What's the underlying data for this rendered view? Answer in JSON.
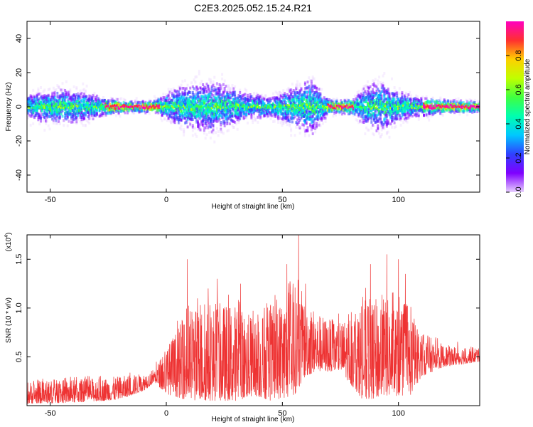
{
  "page_title": "C2E3.2025.052.15.24.R21",
  "colors": {
    "snr_line": "#ee3333",
    "colormap": [
      "#e8d0ff",
      "#8000ff",
      "#3040ff",
      "#00c8ff",
      "#00ffb0",
      "#40ff40",
      "#c0ff00",
      "#ffd000",
      "#ff3030",
      "#ff00c0"
    ]
  },
  "chart_data": [
    {
      "type": "heatmap",
      "title": "C2E3.2025.052.15.24.R21",
      "xlabel": "Height of straight line (km)",
      "ylabel": "Frequency (Hz)",
      "xlim": [
        -60,
        135
      ],
      "ylim": [
        -50,
        50
      ],
      "x_ticks": [
        -50,
        0,
        50,
        100
      ],
      "y_ticks": [
        -40,
        -20,
        0,
        20,
        40
      ],
      "x_tick_labels": [
        "-50",
        "0",
        "50",
        "100"
      ],
      "y_tick_labels": [
        "-40",
        "-20",
        "0",
        "20",
        "40"
      ],
      "colorbar": {
        "label": "Normalized spectral amplitude",
        "range": [
          0,
          1
        ],
        "ticks": [
          0,
          0.2,
          0.4,
          0.6,
          0.8
        ],
        "tick_labels": [
          "0.0",
          "0.2",
          "0.4",
          "0.6",
          "0.8"
        ]
      },
      "spread_profile": [
        {
          "x": -60,
          "spread": 10
        },
        {
          "x": -45,
          "spread": 14
        },
        {
          "x": -35,
          "spread": 11
        },
        {
          "x": -25,
          "spread": 6
        },
        {
          "x": -15,
          "spread": 4
        },
        {
          "x": -5,
          "spread": 5
        },
        {
          "x": 5,
          "spread": 16
        },
        {
          "x": 20,
          "spread": 20
        },
        {
          "x": 35,
          "spread": 10
        },
        {
          "x": 45,
          "spread": 8
        },
        {
          "x": 55,
          "spread": 16
        },
        {
          "x": 62,
          "spread": 22
        },
        {
          "x": 70,
          "spread": 5
        },
        {
          "x": 80,
          "spread": 6
        },
        {
          "x": 85,
          "spread": 15
        },
        {
          "x": 92,
          "spread": 20
        },
        {
          "x": 100,
          "spread": 12
        },
        {
          "x": 110,
          "spread": 7
        },
        {
          "x": 120,
          "spread": 5
        },
        {
          "x": 135,
          "spread": 4
        }
      ]
    },
    {
      "type": "line",
      "xlabel": "Height of straight line (km)",
      "ylabel": "SNR (10 * v/v)",
      "y_multiplier": "(x10^4)",
      "y_multiplier_base": "(x10",
      "y_multiplier_exp": "4",
      "y_multiplier_close": ")",
      "xlim": [
        -60,
        135
      ],
      "ylim": [
        0,
        1.75
      ],
      "x_ticks": [
        -50,
        0,
        50,
        100
      ],
      "y_ticks": [
        0.5,
        1.0,
        1.5
      ],
      "x_tick_labels": [
        "-50",
        "0",
        "50",
        "100"
      ],
      "y_tick_labels": [
        "0.5",
        "1.0",
        "1.5"
      ],
      "series": [
        {
          "envelope": [
            {
              "x": -60,
              "low": 0.02,
              "high": 0.25
            },
            {
              "x": -40,
              "low": 0.03,
              "high": 0.27
            },
            {
              "x": -20,
              "low": 0.06,
              "high": 0.3
            },
            {
              "x": -10,
              "low": 0.15,
              "high": 0.33
            },
            {
              "x": -5,
              "low": 0.24,
              "high": 0.38
            },
            {
              "x": 0,
              "low": 0.12,
              "high": 0.6
            },
            {
              "x": 10,
              "low": 0.05,
              "high": 1.0
            },
            {
              "x": 20,
              "low": 0.05,
              "high": 1.05
            },
            {
              "x": 30,
              "low": 0.05,
              "high": 1.05
            },
            {
              "x": 38,
              "low": 0.1,
              "high": 0.9
            },
            {
              "x": 45,
              "low": 0.05,
              "high": 1.0
            },
            {
              "x": 55,
              "low": 0.1,
              "high": 1.25
            },
            {
              "x": 60,
              "low": 0.3,
              "high": 1.15
            },
            {
              "x": 65,
              "low": 0.35,
              "high": 0.95
            },
            {
              "x": 75,
              "low": 0.35,
              "high": 0.85
            },
            {
              "x": 85,
              "low": 0.05,
              "high": 1.1
            },
            {
              "x": 95,
              "low": 0.1,
              "high": 1.1
            },
            {
              "x": 105,
              "low": 0.1,
              "high": 0.95
            },
            {
              "x": 110,
              "low": 0.3,
              "high": 0.75
            },
            {
              "x": 120,
              "low": 0.4,
              "high": 0.62
            },
            {
              "x": 135,
              "low": 0.45,
              "high": 0.6
            }
          ],
          "spikes": [
            {
              "x": 9,
              "value": 1.5
            },
            {
              "x": 18,
              "value": 1.2
            },
            {
              "x": 22,
              "value": 1.3
            },
            {
              "x": 32,
              "value": 1.25
            },
            {
              "x": 52,
              "value": 1.45
            },
            {
              "x": 57,
              "value": 1.75
            },
            {
              "x": 60,
              "value": 1.25
            },
            {
              "x": 88,
              "value": 1.45
            },
            {
              "x": 95,
              "value": 1.55
            },
            {
              "x": 100,
              "value": 1.5
            },
            {
              "x": 103,
              "value": 1.35
            }
          ]
        }
      ]
    }
  ]
}
